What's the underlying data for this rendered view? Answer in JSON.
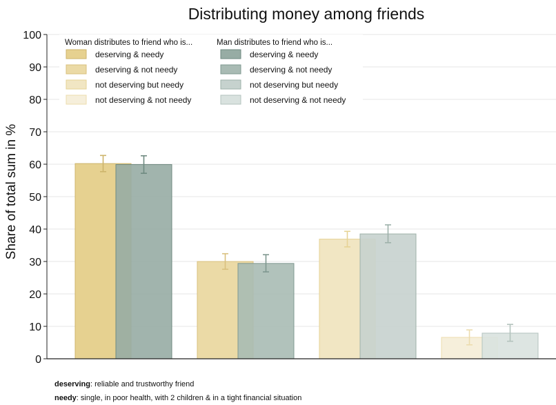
{
  "chart_data": {
    "type": "bar",
    "title": "Distributing money among friends",
    "ylabel": "Share of total sum in %",
    "xlabel": "",
    "ylim": [
      0,
      100
    ],
    "yticks": [
      0,
      10,
      20,
      30,
      40,
      50,
      60,
      70,
      80,
      90,
      100
    ],
    "grid": true,
    "legend_placement": "top-left",
    "legend": {
      "woman_header": "Woman distributes to friend who is...",
      "man_header": "Man distributes to friend who is..."
    },
    "categories": [
      "deserving & needy",
      "deserving & not needy",
      "not deserving but needy",
      "not deserving & not needy"
    ],
    "series": [
      {
        "name": "Woman distributes to friend who is...",
        "values": [
          60.2,
          30.0,
          36.9,
          6.6
        ],
        "ci_low": [
          57.7,
          27.6,
          34.5,
          4.3
        ],
        "ci_high": [
          62.7,
          32.4,
          39.3,
          8.9
        ],
        "colors": [
          "#e6d190",
          "#ebdaa6",
          "#f1e6c3",
          "#f6efdb"
        ]
      },
      {
        "name": "Man distributes to friend who is...",
        "values": [
          59.9,
          29.4,
          38.5,
          7.9
        ],
        "ci_low": [
          57.2,
          26.8,
          35.8,
          5.4
        ],
        "ci_high": [
          62.6,
          32.1,
          41.3,
          10.6
        ],
        "colors": [
          "#97aca4",
          "#a9bbb4",
          "#c6d2ce",
          "#d9e2df"
        ]
      }
    ],
    "error_colors": {
      "woman": [
        "#cdb46b",
        "#d9c07e",
        "#e6d395",
        "#ecdcae"
      ],
      "man": [
        "#6f8a81",
        "#7f9890",
        "#9eb1aa",
        "#b3c3bd"
      ]
    }
  },
  "footnotes": [
    {
      "term": "deserving",
      "text": ": reliable and trustworthy friend"
    },
    {
      "term": "needy",
      "text": ": single, in poor health, with 2 children &  in a tight financial situation"
    }
  ]
}
